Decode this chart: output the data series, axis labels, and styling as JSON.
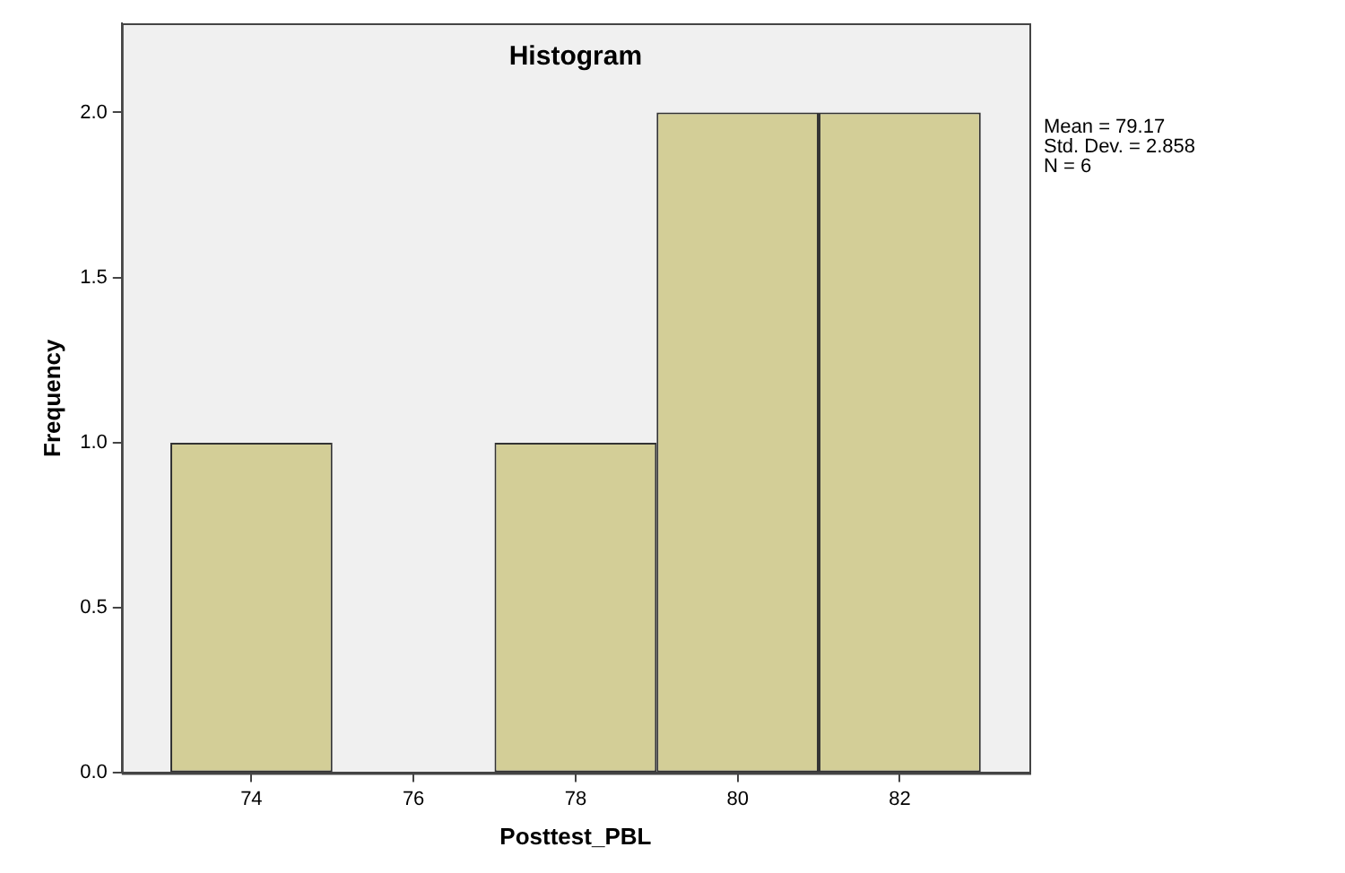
{
  "chart_data": {
    "type": "histogram",
    "title": "Histogram",
    "xlabel": "Posttest_PBL",
    "ylabel": "Frequency",
    "bins": [
      73,
      75,
      77,
      79,
      81,
      83
    ],
    "values": [
      1,
      0,
      1,
      2,
      2
    ],
    "color": "#d3ce97",
    "xlim": [
      72.4,
      83.6
    ],
    "xticks": [
      74,
      76,
      78,
      80,
      82
    ],
    "ylim": [
      0,
      2.27
    ],
    "yticks": [
      {
        "value": 0,
        "label": "0.0"
      },
      {
        "value": 0.5,
        "label": "0.5"
      },
      {
        "value": 1,
        "label": "1.0"
      },
      {
        "value": 1.5,
        "label": "1.5"
      },
      {
        "value": 2,
        "label": "2.0"
      }
    ],
    "grid": false,
    "legend": false,
    "annotations": [
      "Mean = 79.17",
      "Std. Dev. = 2.858",
      "N = 6"
    ]
  }
}
